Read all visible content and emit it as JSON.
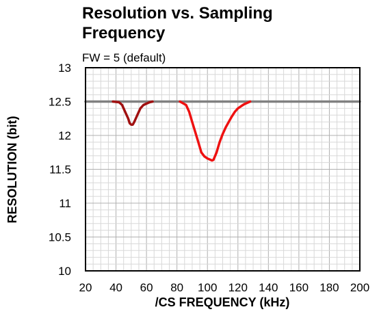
{
  "chart_data": {
    "type": "line",
    "title_line1": "Resolution vs. Sampling",
    "title_line2": "Frequency",
    "subtitle": "FW = 5 (default)",
    "xlabel": "/CS FREQUENCY (kHz)",
    "ylabel": "RESOLUTION (bit)",
    "xlim": [
      20,
      200
    ],
    "ylim": [
      10,
      13
    ],
    "xticks": [
      20,
      40,
      60,
      80,
      100,
      120,
      140,
      160,
      180,
      200
    ],
    "yticks": [
      10,
      10.5,
      11,
      11.5,
      12,
      12.5,
      13
    ],
    "grid": true,
    "legend": "none",
    "series": [
      {
        "color": "#808080",
        "x": [
          20,
          200
        ],
        "y": [
          12.5,
          12.5
        ]
      },
      {
        "color": "#a01010",
        "x": [
          38,
          42,
          44,
          46,
          48,
          49,
          50,
          51,
          52,
          54,
          56,
          58,
          60,
          62,
          64
        ],
        "y": [
          12.5,
          12.49,
          12.45,
          12.35,
          12.25,
          12.18,
          12.16,
          12.16,
          12.2,
          12.3,
          12.4,
          12.45,
          12.47,
          12.49,
          12.5
        ]
      },
      {
        "color": "#ee1111",
        "x": [
          82,
          86,
          88,
          90,
          92,
          94,
          96,
          98,
          100,
          102,
          103,
          104,
          106,
          108,
          110,
          112,
          114,
          116,
          118,
          120,
          122,
          124,
          126,
          128
        ],
        "y": [
          12.5,
          12.45,
          12.35,
          12.2,
          12.05,
          11.9,
          11.75,
          11.69,
          11.66,
          11.64,
          11.63,
          11.64,
          11.75,
          11.9,
          12.02,
          12.12,
          12.2,
          12.28,
          12.35,
          12.4,
          12.43,
          12.46,
          12.48,
          12.5
        ]
      }
    ]
  }
}
